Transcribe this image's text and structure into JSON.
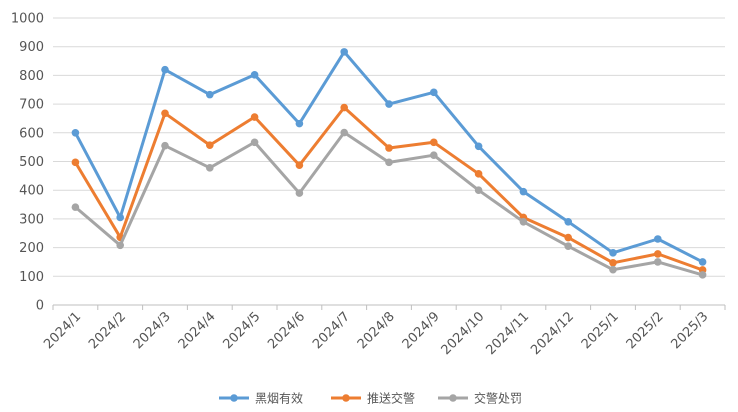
{
  "chart_data": {
    "type": "line",
    "categories": [
      "2024/1",
      "2024/2",
      "2024/3",
      "2024/4",
      "2024/5",
      "2024/6",
      "2024/7",
      "2024/8",
      "2024/9",
      "2024/10",
      "2024/11",
      "2024/12",
      "2025/1",
      "2025/2",
      "2025/3"
    ],
    "series": [
      {
        "name": "黑烟有效",
        "color": "#5B9BD5",
        "values": [
          600,
          305,
          820,
          733,
          802,
          632,
          882,
          700,
          741,
          553,
          395,
          290,
          182,
          230,
          150
        ]
      },
      {
        "name": "推送交警",
        "color": "#ED7D31",
        "values": [
          497,
          236,
          668,
          557,
          655,
          487,
          688,
          547,
          567,
          457,
          305,
          235,
          147,
          178,
          122
        ]
      },
      {
        "name": "交警处罚",
        "color": "#A5A5A5",
        "values": [
          341,
          208,
          555,
          478,
          567,
          390,
          601,
          497,
          522,
          400,
          290,
          205,
          123,
          150,
          105
        ]
      }
    ],
    "title": "",
    "xlabel": "",
    "ylabel": "",
    "ylim": [
      0,
      1000
    ],
    "yticks": [
      "0",
      "100",
      "200",
      "300",
      "400",
      "500",
      "600",
      "700",
      "800",
      "900",
      "1000"
    ],
    "grid": true,
    "legend": "bottom"
  }
}
